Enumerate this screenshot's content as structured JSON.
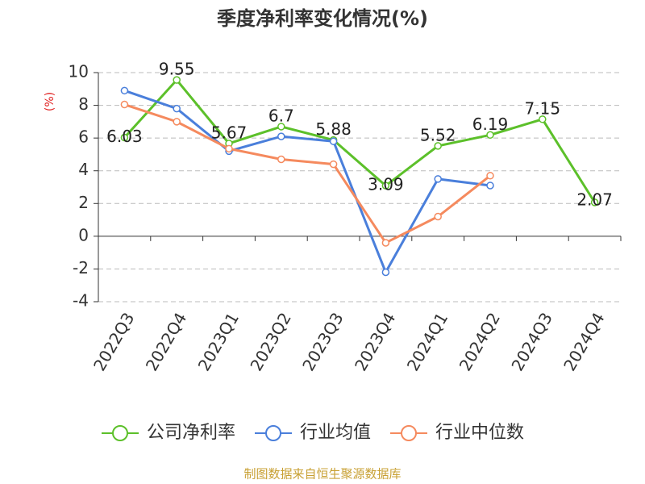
{
  "chart_data": {
    "type": "line",
    "title": "季度净利率变化情况(%)",
    "y_label": "(%)",
    "categories": [
      "2022Q3",
      "2022Q4",
      "2023Q1",
      "2023Q2",
      "2023Q3",
      "2023Q4",
      "2024Q1",
      "2024Q2",
      "2024Q3",
      "2024Q4"
    ],
    "series": [
      {
        "name": "公司净利率",
        "color": "#5cc02a",
        "values": [
          6.03,
          9.55,
          5.67,
          6.7,
          5.88,
          3.09,
          5.52,
          6.19,
          7.15,
          2.07
        ],
        "data_labels": true
      },
      {
        "name": "行业均值",
        "color": "#4a7fdb",
        "values": [
          8.9,
          7.8,
          5.2,
          6.1,
          5.8,
          -2.2,
          3.5,
          3.1,
          null,
          null
        ],
        "data_labels": false
      },
      {
        "name": "行业中位数",
        "color": "#f58a5e",
        "values": [
          8.05,
          7.0,
          5.35,
          4.7,
          4.4,
          -0.4,
          1.2,
          3.7,
          null,
          null
        ],
        "data_labels": false
      }
    ],
    "ylim": [
      -4,
      10
    ],
    "yticks": [
      -4,
      -2,
      0,
      2,
      4,
      6,
      8,
      10
    ],
    "grid": true,
    "legend": "bottom",
    "source": "制图数据来自恒生聚源数据库"
  }
}
